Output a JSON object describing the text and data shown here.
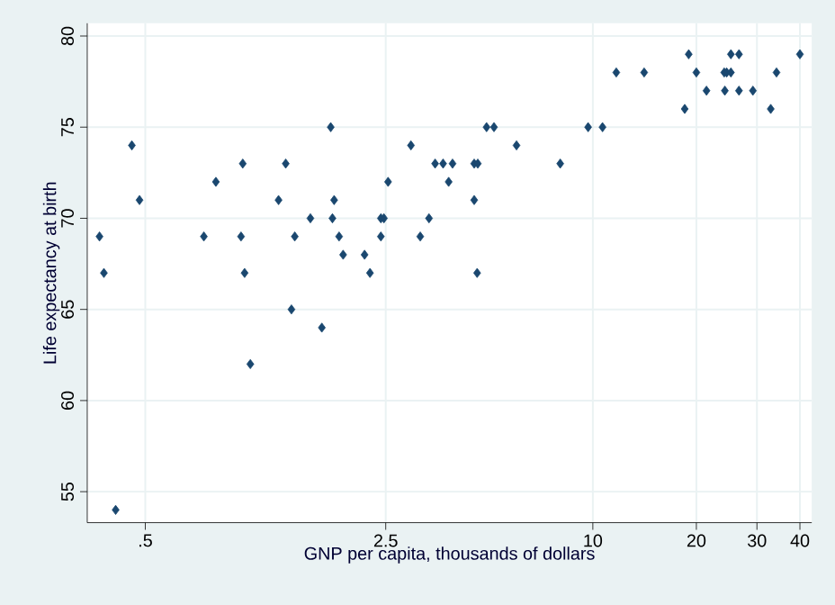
{
  "chart_data": {
    "type": "scatter",
    "xlabel": "GNP per capita, thousands of dollars",
    "ylabel": "Life expectancy at birth",
    "log": "x",
    "grid": true,
    "marker": "diamond",
    "color": "#1a476f",
    "xlim": [
      0.339,
      43.3
    ],
    "ylim": [
      53.3,
      80.7
    ],
    "xticks": [
      {
        "value": 0.5,
        "label": ".5"
      },
      2.5,
      10,
      20,
      30,
      40
    ],
    "yticks": [
      55,
      60,
      65,
      70,
      75,
      80
    ],
    "x": [
      0.368,
      0.379,
      0.457,
      0.481,
      0.41,
      0.74,
      0.802,
      0.96,
      0.949,
      0.972,
      1.01,
      1.22,
      1.28,
      1.36,
      1.33,
      1.73,
      1.51,
      1.75,
      1.77,
      1.83,
      1.88,
      1.63,
      2.17,
      2.25,
      2.42,
      2.42,
      2.47,
      2.54,
      2.96,
      3.15,
      3.34,
      3.48,
      3.67,
      3.91,
      3.81,
      4.52,
      4.63,
      4.52,
      4.61,
      4.91,
      5.16,
      6.0,
      8.04,
      9.69,
      10.67,
      11.7,
      14.1,
      18.5,
      19.0,
      20.0,
      21.4,
      24.2,
      24.1,
      24.5,
      25.2,
      25.2,
      26.6,
      26.6,
      29.2,
      32.9,
      34.2,
      40.0
    ],
    "values": [
      69,
      67,
      74,
      71,
      54,
      69,
      72,
      73,
      69,
      67,
      62,
      71,
      73,
      69,
      65,
      75,
      70,
      70,
      71,
      69,
      68,
      64,
      68,
      67,
      69,
      70,
      70,
      72,
      74,
      69,
      70,
      73,
      73,
      73,
      72,
      73,
      73,
      71,
      67,
      75,
      75,
      74,
      73,
      75,
      75,
      78,
      78,
      76,
      79,
      78,
      77,
      77,
      78,
      78,
      78,
      79,
      79,
      77,
      77,
      76,
      78,
      79
    ]
  }
}
